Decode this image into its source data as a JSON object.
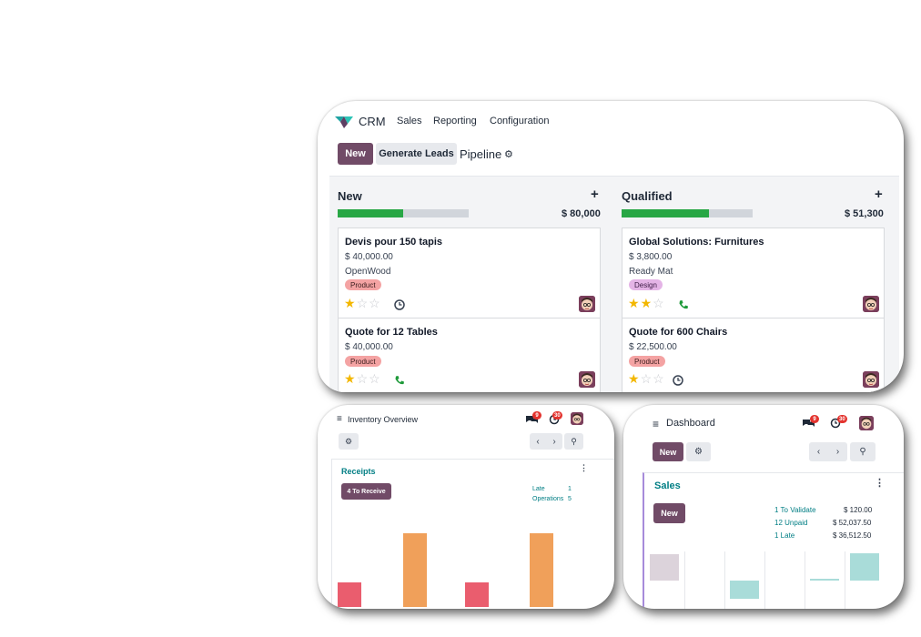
{
  "crm": {
    "app_name": "CRM",
    "menu": [
      "Sales",
      "Reporting",
      "Configuration"
    ],
    "new_button": "New",
    "generate_leads_button": "Generate Leads",
    "view_title": "Pipeline",
    "columns": [
      {
        "title": "New",
        "total": "$ 80,000",
        "progress": 0.5,
        "cards": [
          {
            "title": "Devis pour 150 tapis",
            "amount": "$ 40,000.00",
            "company": "OpenWood",
            "tag": "Product",
            "stars": 1,
            "activity": "clock-icon"
          },
          {
            "title": "Quote for 12 Tables",
            "amount": "$ 40,000.00",
            "company": "",
            "tag": "Product",
            "stars": 1,
            "activity": "phone-icon"
          }
        ]
      },
      {
        "title": "Qualified",
        "total": "$ 51,300",
        "progress": 0.67,
        "cards": [
          {
            "title": "Global Solutions: Furnitures",
            "amount": "$ 3,800.00",
            "company": "Ready Mat",
            "tag": "Design",
            "stars": 2,
            "activity": "phone-icon"
          },
          {
            "title": "Quote for 600 Chairs",
            "amount": "$ 22,500.00",
            "company": "",
            "tag": "Product",
            "stars": 1,
            "activity": "clock-icon"
          }
        ]
      }
    ]
  },
  "inventory": {
    "title": "Inventory Overview",
    "messages_badge": "9",
    "activities_badge": "30",
    "card_title": "Receipts",
    "to_receive_button": "4 To Receive",
    "stats": [
      {
        "label": "Late",
        "value": "1"
      },
      {
        "label": "Operations",
        "value": "5"
      }
    ],
    "bars": [
      {
        "color": "#ea5d6e",
        "level": 0.28
      },
      {
        "color": "#f0a05a",
        "level": 0.83
      },
      {
        "color": "#ea5d6e",
        "level": 0.28
      },
      {
        "color": "#f0a05a",
        "level": 0.83
      }
    ]
  },
  "dashboard": {
    "title": "Dashboard",
    "messages_badge": "9",
    "activities_badge": "30",
    "new_button": "New",
    "card_title": "Sales",
    "card_new_button": "New",
    "stats": [
      {
        "label": "1 To Validate",
        "value": "$ 120.00"
      },
      {
        "label": "12 Unpaid",
        "value": "$ 52,037.50"
      },
      {
        "label": "1 Late",
        "value": "$ 36,512.50"
      }
    ]
  },
  "colors": {
    "brand": "#714b67",
    "success": "#28a745",
    "teal": "#017e84",
    "star": "#f3b700"
  }
}
